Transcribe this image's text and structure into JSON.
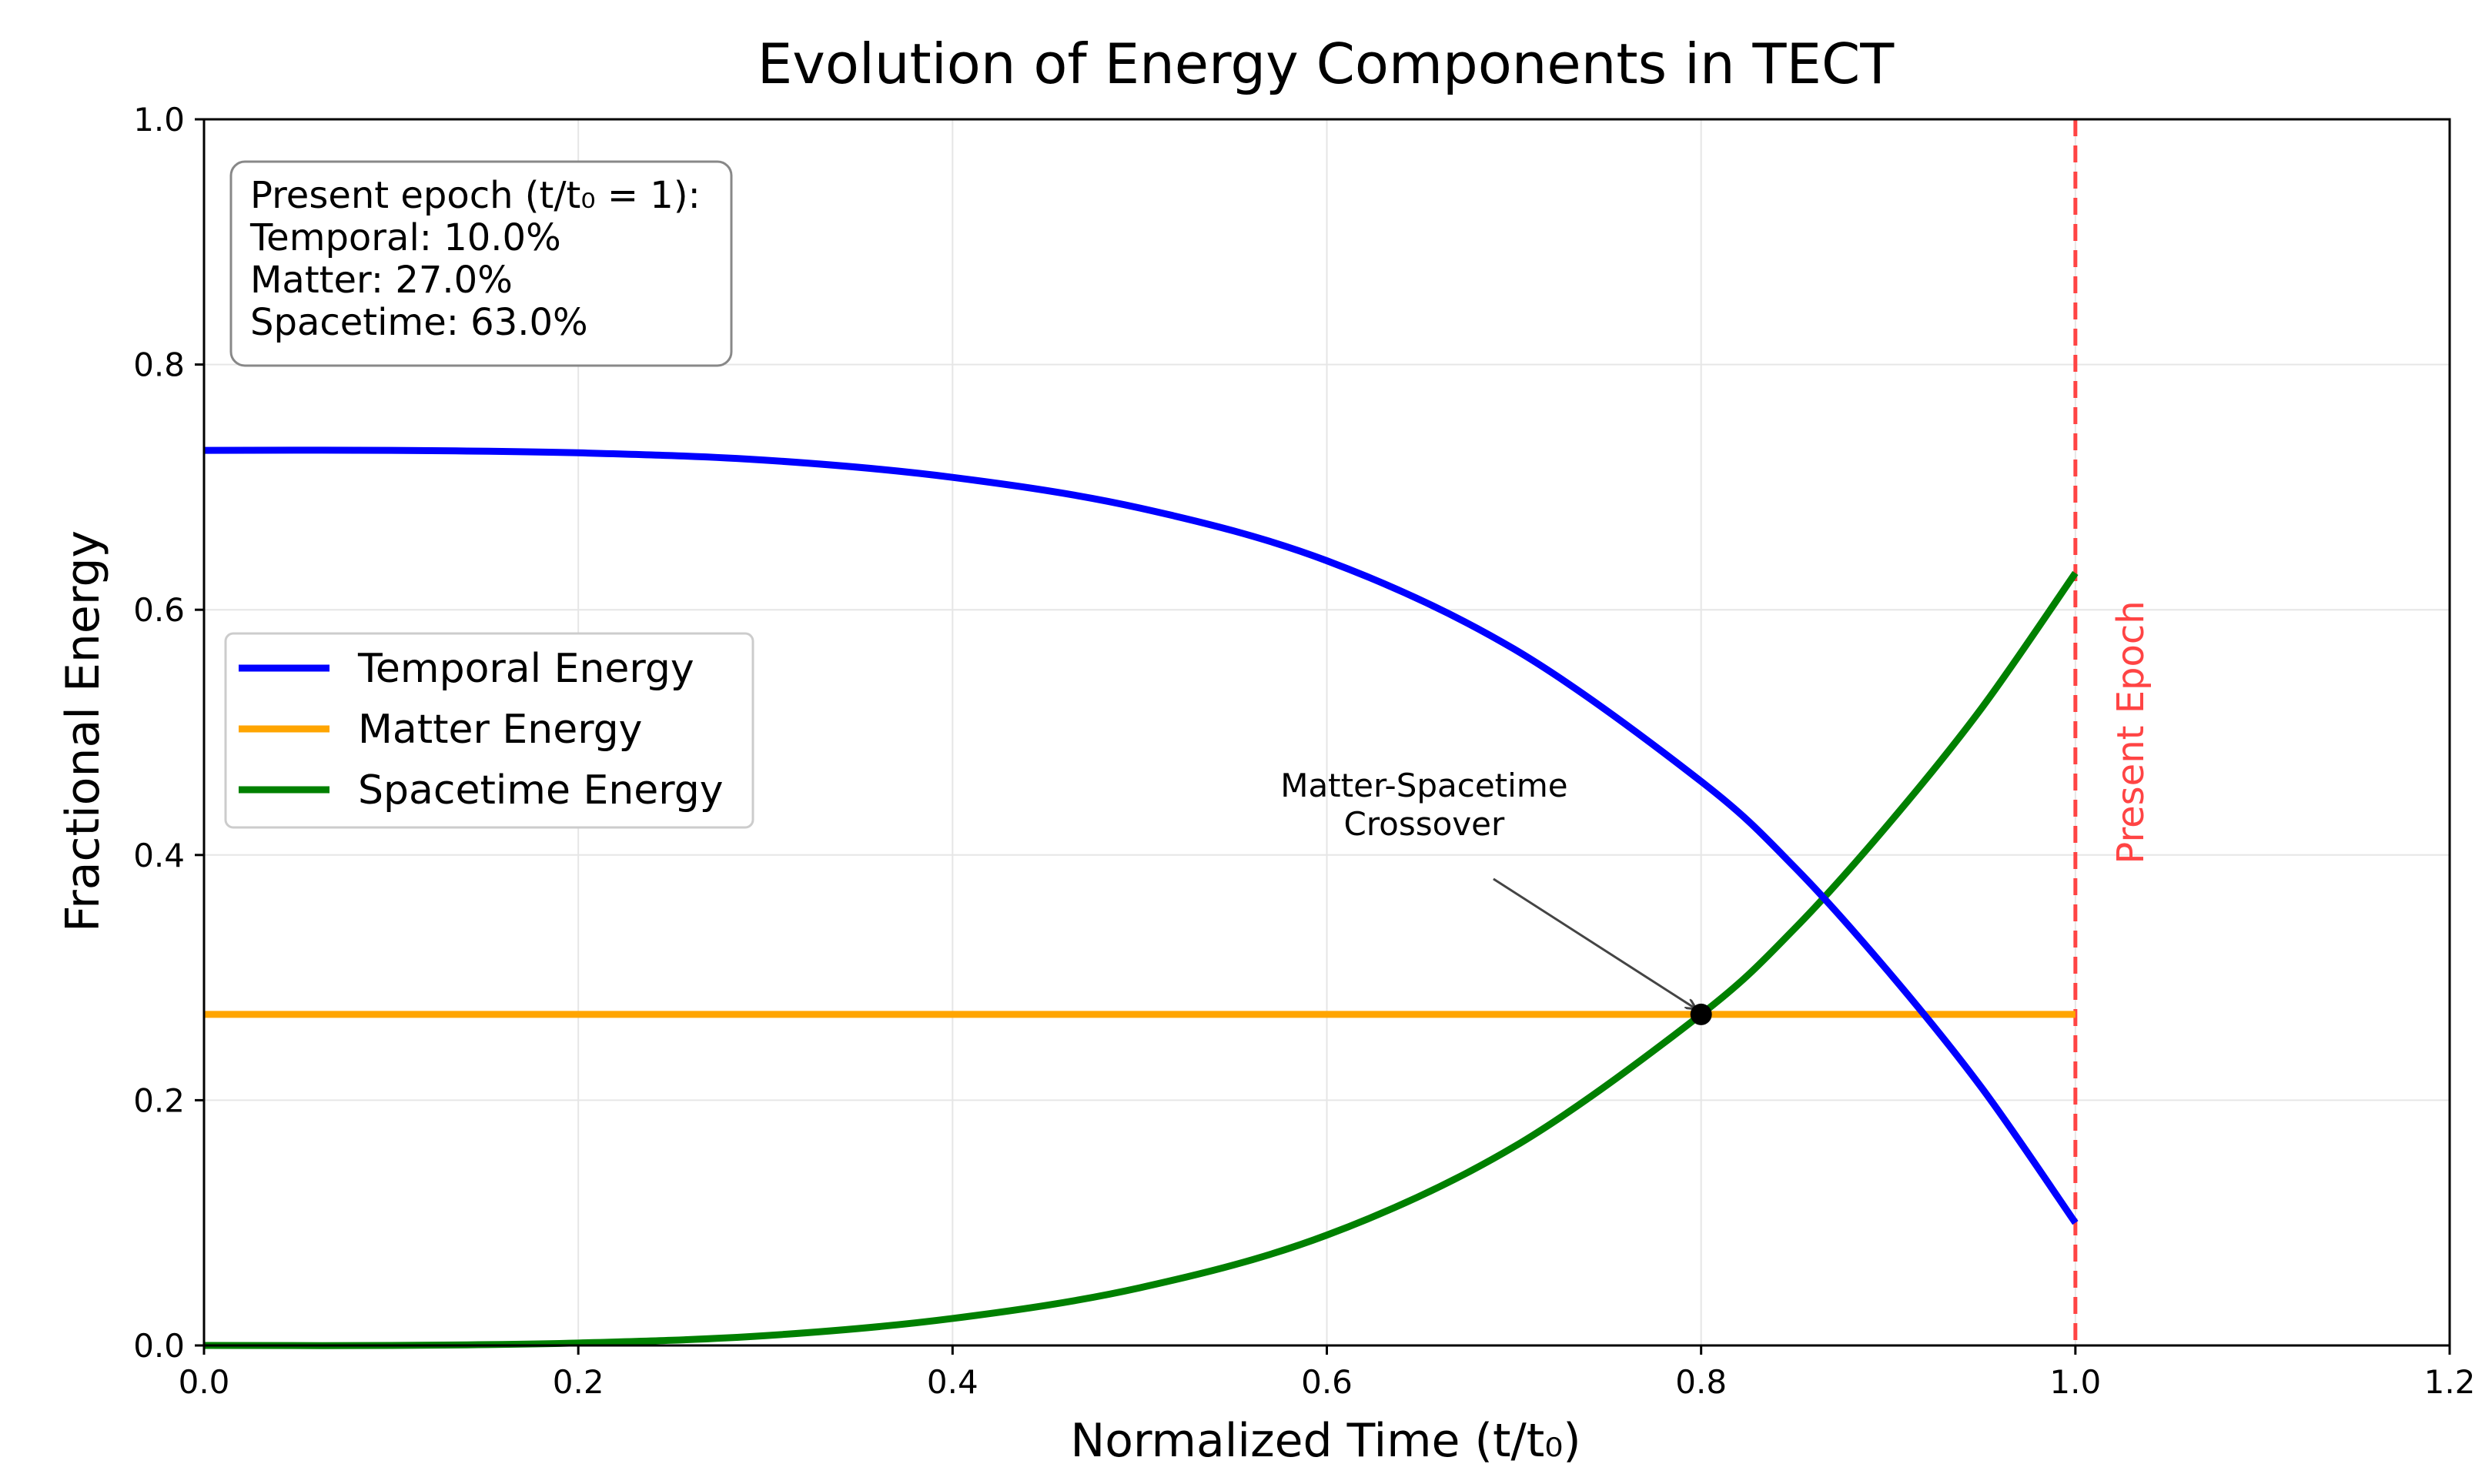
{
  "chart_data": {
    "type": "line",
    "title": "Evolution of Energy Components in TECT",
    "xlabel": "Normalized Time (t/t₀)",
    "ylabel": "Fractional Energy",
    "xlim": [
      0.0,
      1.2
    ],
    "ylim": [
      0.0,
      1.0
    ],
    "xticks": [
      "0.0",
      "0.2",
      "0.4",
      "0.6",
      "0.8",
      "1.0",
      "1.2"
    ],
    "yticks": [
      "0.0",
      "0.2",
      "0.4",
      "0.6",
      "0.8",
      "1.0"
    ],
    "grid": true,
    "legend_position": "center-left",
    "series": [
      {
        "name": "Temporal Energy",
        "color": "#0000ff",
        "x": [
          0.0,
          0.1,
          0.2,
          0.3,
          0.4,
          0.5,
          0.6,
          0.7,
          0.8,
          0.85,
          0.9,
          0.95,
          1.0
        ],
        "y": [
          0.73,
          0.73,
          0.728,
          0.722,
          0.708,
          0.683,
          0.64,
          0.568,
          0.46,
          0.39,
          0.305,
          0.21,
          0.1
        ]
      },
      {
        "name": "Matter Energy",
        "color": "#ffa500",
        "x": [
          0.0,
          1.0
        ],
        "y": [
          0.27,
          0.27
        ]
      },
      {
        "name": "Spacetime Energy",
        "color": "#008000",
        "x": [
          0.0,
          0.1,
          0.2,
          0.3,
          0.4,
          0.5,
          0.6,
          0.7,
          0.8,
          0.85,
          0.9,
          0.95,
          1.0
        ],
        "y": [
          0.0,
          0.0,
          0.002,
          0.008,
          0.022,
          0.047,
          0.09,
          0.162,
          0.27,
          0.34,
          0.425,
          0.52,
          0.63
        ]
      }
    ],
    "info_box": {
      "lines": [
        "Present epoch (t/t₀ = 1):",
        "Temporal: 10.0%",
        "Matter: 27.0%",
        "Spacetime: 63.0%"
      ],
      "position": "top-left"
    },
    "vertical_line": {
      "x": 1.0,
      "label": "Present Epoch",
      "color": "#ff4444"
    },
    "annotation": {
      "text_lines": [
        "Matter-Spacetime",
        "Crossover"
      ],
      "point": {
        "x": 0.8,
        "y": 0.27
      },
      "text_at": {
        "x": 0.652,
        "y": 0.415
      }
    }
  }
}
